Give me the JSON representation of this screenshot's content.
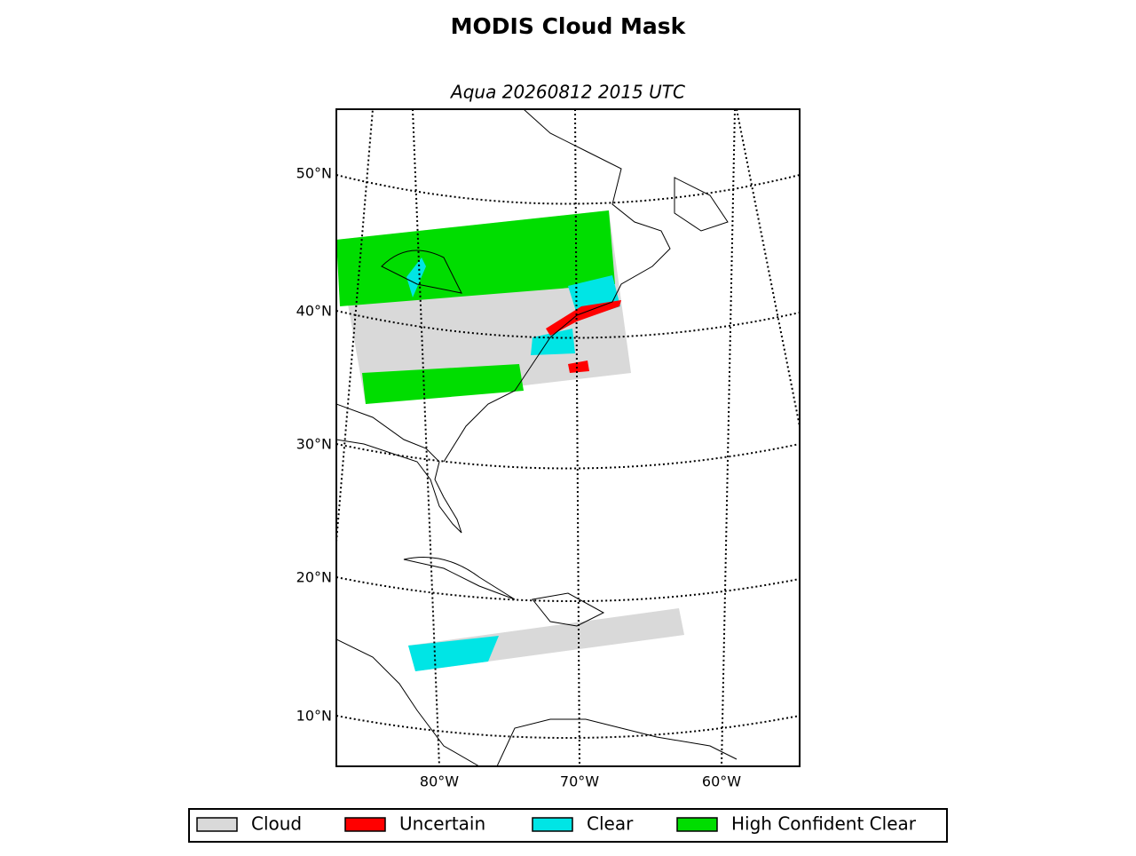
{
  "title": "MODIS Cloud Mask",
  "subtitle": "Aqua 20260812 2015 UTC",
  "latitude_labels": [
    "50°N",
    "40°N",
    "30°N",
    "20°N",
    "10°N"
  ],
  "longitude_labels": [
    "80°W",
    "70°W",
    "60°W"
  ],
  "legend": [
    {
      "label": "Cloud",
      "color": "#d9d9d9"
    },
    {
      "label": "Uncertain",
      "color": "#ff0000"
    },
    {
      "label": "Clear",
      "color": "#00e5e5"
    },
    {
      "label": "High Confident Clear",
      "color": "#00dd00"
    }
  ]
}
